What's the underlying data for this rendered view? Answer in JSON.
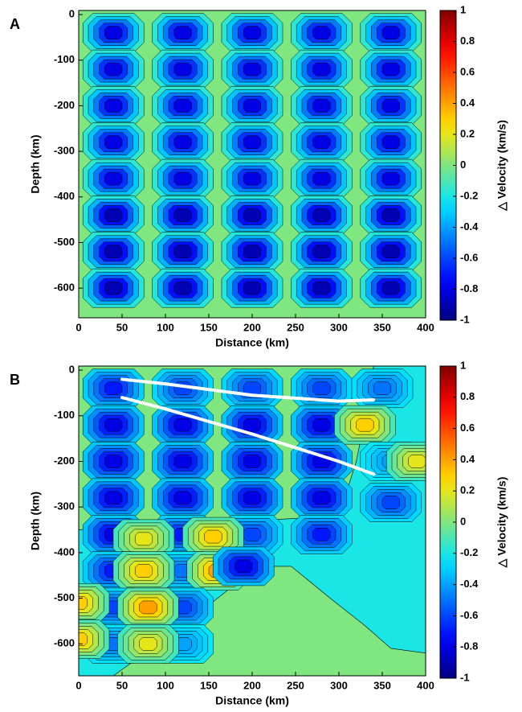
{
  "chart_data": [
    {
      "type": "contour",
      "panel_label": "A",
      "xlabel": "Distance (km)",
      "ylabel": "Depth (km)",
      "colorbar_label": "△ Velocity (km/s)",
      "xlim": [
        0,
        400
      ],
      "ylim": [
        -665,
        9
      ],
      "xticks": [
        0,
        50,
        100,
        150,
        200,
        250,
        300,
        350,
        400
      ],
      "yticks": [
        0,
        -100,
        -200,
        -300,
        -400,
        -500,
        -600
      ],
      "clim": [
        -1,
        1
      ],
      "cticks": [
        1,
        0.8,
        0.6,
        0.4,
        0.2,
        0,
        -0.2,
        -0.4,
        -0.6,
        -0.8,
        -1
      ],
      "background": 0,
      "anomalies": {
        "x": [
          40,
          120,
          200,
          280,
          360,
          40,
          120,
          200,
          280,
          360,
          40,
          120,
          200,
          280,
          360,
          40,
          120,
          200,
          280,
          360,
          40,
          120,
          200,
          280,
          360,
          40,
          120,
          200,
          280,
          360,
          40,
          120,
          200,
          280,
          360,
          40,
          120,
          200,
          280,
          360
        ],
        "y": [
          -40,
          -40,
          -40,
          -40,
          -40,
          -120,
          -120,
          -120,
          -120,
          -120,
          -200,
          -200,
          -200,
          -200,
          -200,
          -280,
          -280,
          -280,
          -280,
          -280,
          -360,
          -360,
          -360,
          -360,
          -360,
          -440,
          -440,
          -440,
          -440,
          -440,
          -520,
          -520,
          -520,
          -520,
          -520,
          -600,
          -600,
          -600,
          -600,
          -600
        ],
        "values": [
          -0.8,
          -0.8,
          -0.8,
          -0.8,
          -0.8,
          -0.8,
          -0.8,
          -0.8,
          -0.8,
          -0.8,
          -0.8,
          -0.8,
          -0.8,
          -0.8,
          -0.8,
          -0.8,
          -0.8,
          -0.8,
          -0.8,
          -0.8,
          -0.8,
          -0.8,
          -0.8,
          -0.8,
          -0.8,
          -0.9,
          -0.9,
          -0.9,
          -0.9,
          -0.9,
          -0.9,
          -0.9,
          -0.9,
          -0.9,
          -0.9,
          -0.9,
          -0.9,
          -0.9,
          -0.9,
          -0.9
        ]
      }
    },
    {
      "type": "contour",
      "panel_label": "B",
      "xlabel": "Distance (km)",
      "ylabel": "Depth (km)",
      "colorbar_label": "△ Velocity (km/s)",
      "xlim": [
        0,
        400
      ],
      "ylim": [
        -670,
        9
      ],
      "xticks": [
        0,
        50,
        100,
        150,
        200,
        250,
        300,
        350,
        400
      ],
      "yticks": [
        0,
        -100,
        -200,
        -300,
        -400,
        -500,
        -600
      ],
      "clim": [
        -1,
        1
      ],
      "cticks": [
        1,
        0.8,
        0.6,
        0.4,
        0.2,
        0,
        -0.2,
        -0.4,
        -0.6,
        -0.8,
        -1
      ],
      "background": -0.2,
      "regions": [
        {
          "x": [
            0,
            340,
            335,
            320,
            300,
            200,
            100,
            0
          ],
          "y": [
            9,
            9,
            -60,
            -200,
            -320,
            -330,
            -330,
            -350
          ],
          "value": 0
        },
        {
          "x": [
            40,
            120,
            180,
            210,
            245,
            290,
            330,
            360,
            400,
            400
          ],
          "y": [
            -670,
            -560,
            -470,
            -430,
            -430,
            -500,
            -560,
            -610,
            -620,
            -670
          ],
          "value": 0
        }
      ],
      "anomalies": {
        "x": [
          40,
          120,
          200,
          280,
          350,
          40,
          120,
          200,
          280,
          330,
          40,
          120,
          200,
          280,
          360,
          390,
          40,
          120,
          200,
          280,
          360,
          40,
          120,
          200,
          280,
          75,
          155,
          40,
          120,
          75,
          160,
          190,
          40,
          120,
          80,
          0,
          40,
          120,
          0,
          80
        ],
        "y": [
          -40,
          -40,
          -40,
          -40,
          -40,
          -120,
          -120,
          -120,
          -120,
          -120,
          -200,
          -200,
          -200,
          -200,
          -200,
          -200,
          -280,
          -280,
          -280,
          -280,
          -290,
          -360,
          -360,
          -360,
          -360,
          -370,
          -365,
          -440,
          -440,
          -440,
          -440,
          -430,
          -520,
          -520,
          -520,
          -510,
          -600,
          -600,
          -590,
          -600
        ],
        "values": [
          -0.7,
          -0.6,
          -0.6,
          -0.6,
          -0.5,
          -0.8,
          -0.8,
          -0.8,
          -0.8,
          0.3,
          -0.8,
          -0.8,
          -0.8,
          -0.8,
          -0.4,
          0.2,
          -0.8,
          -0.8,
          -0.8,
          -0.8,
          -0.6,
          -0.8,
          -0.7,
          -0.6,
          -0.7,
          0.2,
          0.3,
          -0.7,
          -0.5,
          0.3,
          0.4,
          -0.8,
          -0.6,
          -0.6,
          0.4,
          0.3,
          -0.5,
          -0.4,
          0.3,
          0.2
        ]
      },
      "lines": [
        {
          "color": "#ffffff",
          "x": [
            50,
            100,
            200,
            300,
            340
          ],
          "y": [
            -20,
            -30,
            -55,
            -68,
            -65
          ]
        },
        {
          "color": "#ffffff",
          "x": [
            50,
            100,
            200,
            300,
            340
          ],
          "y": [
            -60,
            -85,
            -140,
            -200,
            -228
          ]
        }
      ]
    }
  ]
}
